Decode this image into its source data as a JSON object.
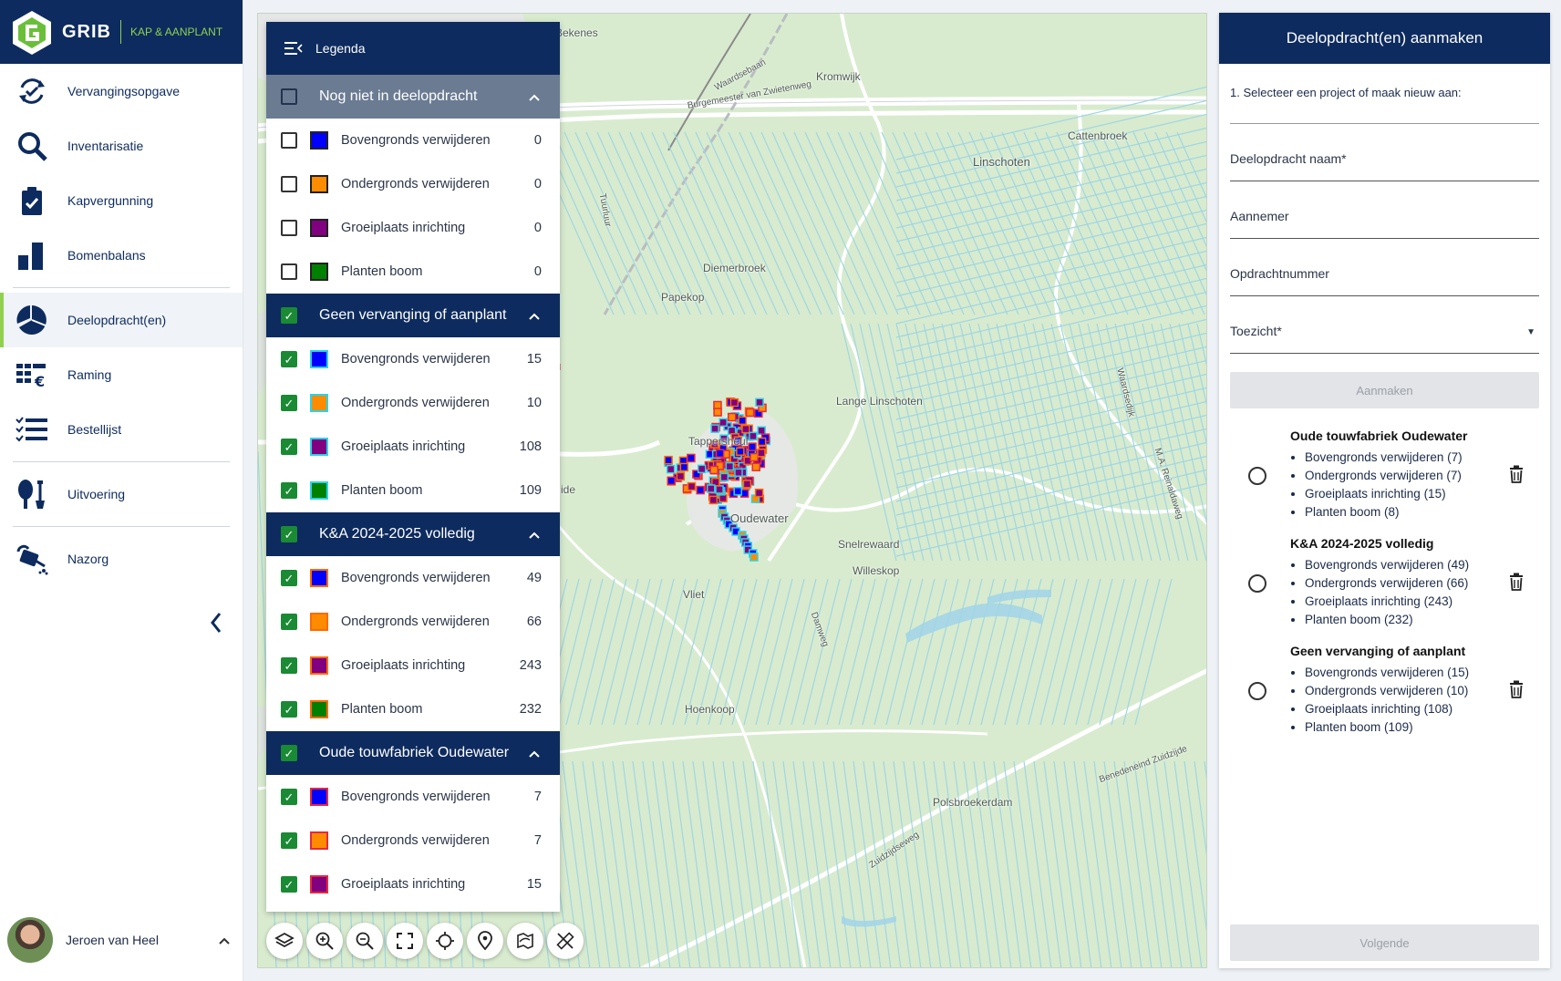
{
  "brand": {
    "name": "GRIB",
    "tagline": "KAP & AANPLANT"
  },
  "nav": [
    {
      "label": "Vervangingsopgave",
      "icon": "cycle-check-icon"
    },
    {
      "label": "Inventarisatie",
      "icon": "magnifier-icon"
    },
    {
      "label": "Kapvergunning",
      "icon": "clipboard-check-icon"
    },
    {
      "label": "Bomenbalans",
      "icon": "bar-chart-icon"
    },
    {
      "label": "Deelopdracht(en)",
      "icon": "pie-chart-icon",
      "active": true
    },
    {
      "label": "Raming",
      "icon": "euro-list-icon"
    },
    {
      "label": "Bestellijst",
      "icon": "checklist-icon"
    },
    {
      "label": "Uitvoering",
      "icon": "shovel-icon"
    },
    {
      "label": "Nazorg",
      "icon": "watering-can-icon"
    }
  ],
  "user": {
    "name": "Jeroen van Heel"
  },
  "legend": {
    "title": "Legenda",
    "groups": [
      {
        "name": "Nog niet in deelopdracht",
        "checked": false,
        "items": [
          {
            "label": "Bovengronds verwijderen",
            "count": "0",
            "color": "#0000ff",
            "checked": false
          },
          {
            "label": "Ondergronds verwijderen",
            "count": "0",
            "color": "#ff8c00",
            "checked": false
          },
          {
            "label": "Groeiplaats inrichting",
            "count": "0",
            "color": "#800080",
            "checked": false
          },
          {
            "label": "Planten boom",
            "count": "0",
            "color": "#008000",
            "checked": false
          }
        ]
      },
      {
        "name": "Geen vervanging of aanplant",
        "checked": true,
        "items": [
          {
            "label": "Bovengronds verwijderen",
            "count": "15",
            "color": "#0000ff",
            "border": "#2ad4e6",
            "checked": true
          },
          {
            "label": "Ondergronds verwijderen",
            "count": "10",
            "color": "#ff8c00",
            "border": "#2ad4e6",
            "checked": true
          },
          {
            "label": "Groeiplaats inrichting",
            "count": "108",
            "color": "#800080",
            "border": "#2ad4e6",
            "checked": true
          },
          {
            "label": "Planten boom",
            "count": "109",
            "color": "#008000",
            "border": "#2ad4e6",
            "checked": true
          }
        ]
      },
      {
        "name": "K&A 2024-2025 volledig",
        "checked": true,
        "items": [
          {
            "label": "Bovengronds verwijderen",
            "count": "49",
            "color": "#0000ff",
            "border": "#ff6a00",
            "checked": true
          },
          {
            "label": "Ondergronds verwijderen",
            "count": "66",
            "color": "#ff8c00",
            "border": "#ff6a00",
            "checked": true
          },
          {
            "label": "Groeiplaats inrichting",
            "count": "243",
            "color": "#800080",
            "border": "#ff6a00",
            "checked": true
          },
          {
            "label": "Planten boom",
            "count": "232",
            "color": "#008000",
            "border": "#ff6a00",
            "checked": true
          }
        ]
      },
      {
        "name": "Oude touwfabriek Oudewater",
        "checked": true,
        "items": [
          {
            "label": "Bovengronds verwijderen",
            "count": "7",
            "color": "#0000ff",
            "border": "#e8283c",
            "checked": true
          },
          {
            "label": "Ondergronds verwijderen",
            "count": "7",
            "color": "#ff8c00",
            "border": "#e8283c",
            "checked": true
          },
          {
            "label": "Groeiplaats inrichting",
            "count": "15",
            "color": "#800080",
            "border": "#e8283c",
            "checked": true
          }
        ]
      }
    ]
  },
  "map": {
    "places": [
      "Bekenes",
      "Kromwijk",
      "Waardsebaan",
      "Burgemeester van Zwietenweg",
      "Cattenbroek",
      "Linschoten",
      "Diemerbroek",
      "Papekop",
      "Lange Linschoten",
      "Tappersheul",
      "Oudewater",
      "Snelrewaard",
      "Willeskop",
      "Vliet",
      "Damweg",
      "Hoenkoop",
      "Polsbroekerdam",
      "Zuidzijdseweg",
      "Benedeneind Zuidzijde",
      "Waardsedijk",
      "M.A. Reinaldaweg",
      "Tuurluur",
      "ide"
    ]
  },
  "tools": [
    "layers-icon",
    "zoom-in-icon",
    "zoom-out-icon",
    "fullscreen-icon",
    "locate-icon",
    "marker-icon",
    "route-icon",
    "measure-off-icon"
  ],
  "panel": {
    "title": "Deelopdracht(en) aanmaken",
    "step": "1. Selecteer een project of maak nieuw aan:",
    "fields": [
      "Deelopdracht naam*",
      "Aannemer",
      "Opdrachtnummer",
      "Toezicht*"
    ],
    "create": "Aanmaken",
    "projects": [
      {
        "name": "Oude touwfabriek Oudewater",
        "items": [
          "Bovengronds verwijderen (7)",
          "Ondergronds verwijderen (7)",
          "Groeiplaats inrichting (15)",
          "Planten boom (8)"
        ]
      },
      {
        "name": "K&A 2024-2025 volledig",
        "items": [
          "Bovengronds verwijderen (49)",
          "Ondergronds verwijderen (66)",
          "Groeiplaats inrichting (243)",
          "Planten boom (232)"
        ]
      },
      {
        "name": "Geen vervanging of aanplant",
        "items": [
          "Bovengronds verwijderen (15)",
          "Ondergronds verwijderen (10)",
          "Groeiplaats inrichting (108)",
          "Planten boom (109)"
        ]
      }
    ],
    "next": "Volgende"
  }
}
